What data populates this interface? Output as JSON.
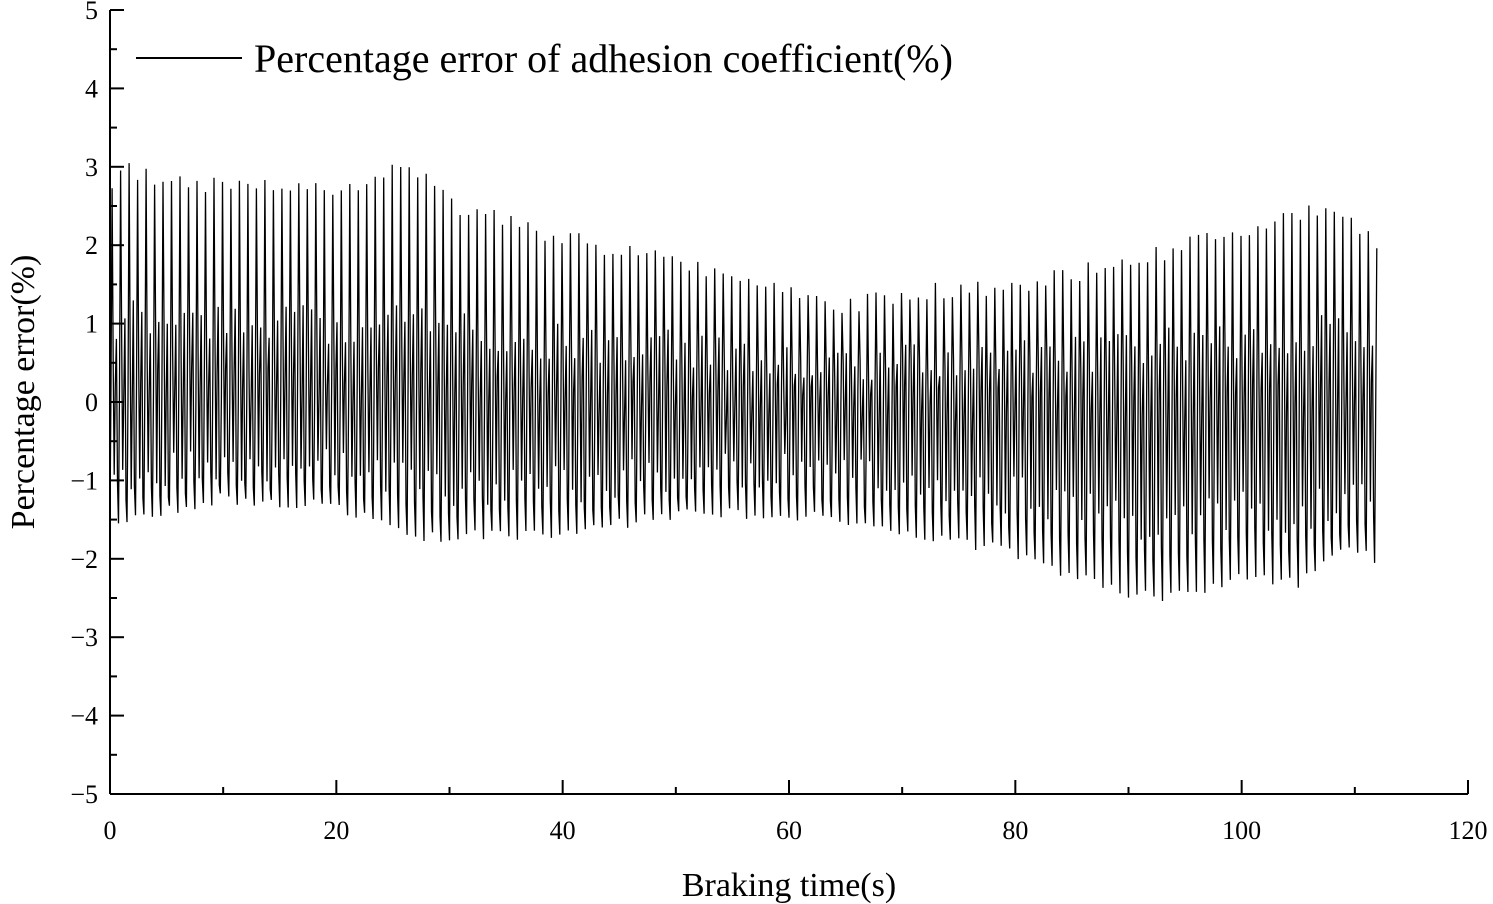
{
  "chart_data": {
    "type": "line",
    "title": "",
    "xlabel": "Braking time(s)",
    "ylabel": "Percentage error(%)",
    "xlim": [
      0,
      120
    ],
    "ylim": [
      -5,
      5
    ],
    "xticks": [
      0,
      20,
      40,
      60,
      80,
      100,
      120
    ],
    "xtick_labels": [
      "0",
      "20",
      "40",
      "60",
      "80",
      "100",
      "120"
    ],
    "yticks": [
      5,
      4,
      3,
      2,
      1,
      0,
      -1,
      -2,
      -3,
      -4,
      -5
    ],
    "ytick_labels": [
      "5",
      "4",
      "3",
      "2",
      "1",
      "0",
      "−1",
      "−2",
      "−3",
      "−4",
      "−5"
    ],
    "grid": false,
    "legend_position": "top-left",
    "line_color": "#000000",
    "series": [
      {
        "name": "Percentage error of adhesion coefficient(%)",
        "time_range": [
          0,
          112
        ],
        "upper_envelope": {
          "x": [
            0,
            1,
            5,
            10,
            13,
            20,
            26,
            30,
            40,
            50,
            60,
            64,
            70,
            80,
            90,
            100,
            105,
            108,
            112
          ],
          "y": [
            2.9,
            3.1,
            2.9,
            2.9,
            2.95,
            2.75,
            3.2,
            2.6,
            2.2,
            1.9,
            1.5,
            1.3,
            1.5,
            1.6,
            1.9,
            2.3,
            2.5,
            2.65,
            2.1
          ]
        },
        "lower_envelope": {
          "x": [
            0,
            1,
            10,
            20,
            28,
            40,
            50,
            60,
            70,
            80,
            85,
            90,
            93,
            100,
            105,
            110,
            112
          ],
          "y": [
            -1.5,
            -1.6,
            -1.3,
            -1.4,
            -1.8,
            -1.75,
            -1.5,
            -1.5,
            -1.7,
            -2.0,
            -2.3,
            -2.5,
            -2.6,
            -2.3,
            -2.4,
            -1.9,
            -2.1
          ]
        }
      }
    ]
  }
}
